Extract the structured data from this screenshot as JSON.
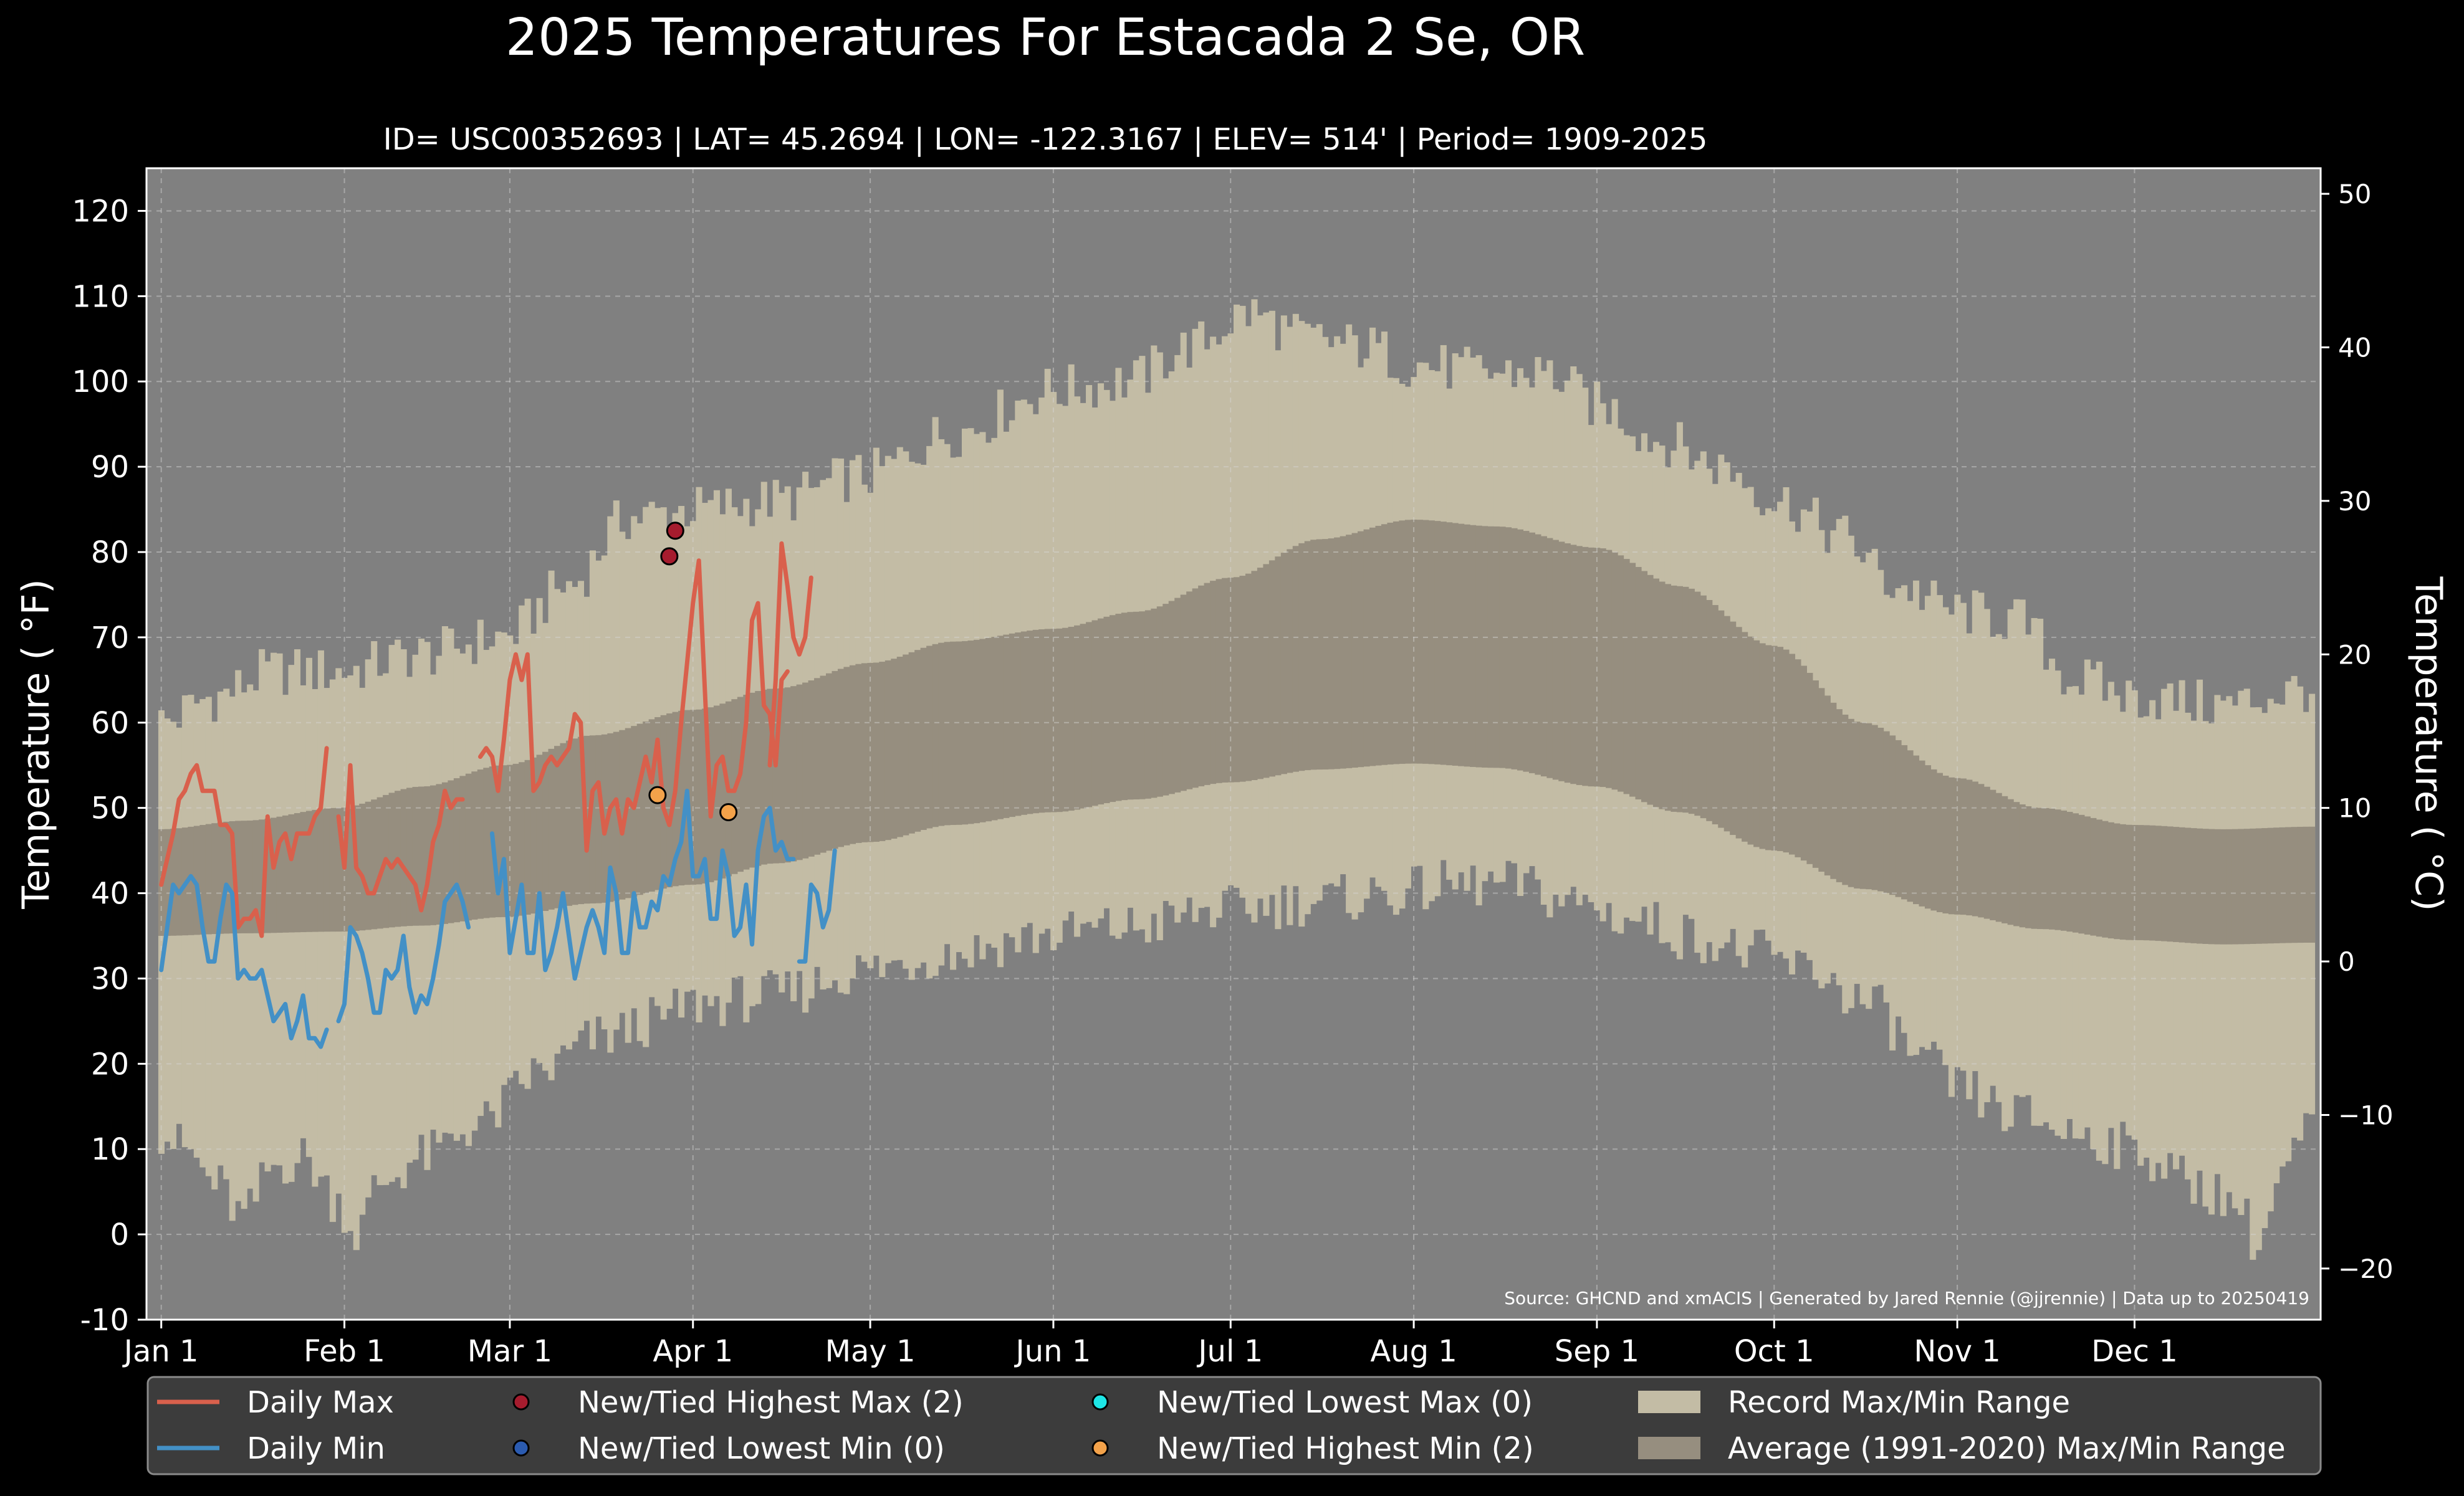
{
  "chart_data": {
    "type": "area",
    "title": "2025 Temperatures For Estacada 2 Se, OR",
    "subtitle": "ID= USC00352693 | LAT= 45.2694 | LON= -122.3167 | ELEV= 514' | Period= 1909-2025",
    "ylabel": "Temperature ( °F)",
    "ylabel_right": "Temperature ( °C)",
    "source": "Source: GHCND and xmACIS | Generated by Jared Rennie (@jjrennie) | Data up to 20250419",
    "ylim": [
      -10,
      125
    ],
    "ylim_right_c": [
      -23.333,
      51.667
    ],
    "xlim_day": [
      -1.5,
      366.5
    ],
    "yticks": [
      -10,
      0,
      10,
      20,
      30,
      40,
      50,
      60,
      70,
      80,
      90,
      100,
      110,
      120
    ],
    "yticks_right": [
      -20,
      -10,
      0,
      10,
      20,
      30,
      40,
      50
    ],
    "xticks": [
      {
        "label": "Jan 1",
        "day": 1
      },
      {
        "label": "Feb 1",
        "day": 32
      },
      {
        "label": "Mar 1",
        "day": 60
      },
      {
        "label": "Apr 1",
        "day": 91
      },
      {
        "label": "May 1",
        "day": 121
      },
      {
        "label": "Jun 1",
        "day": 152
      },
      {
        "label": "Jul 1",
        "day": 182
      },
      {
        "label": "Aug 1",
        "day": 213
      },
      {
        "label": "Sep 1",
        "day": 244
      },
      {
        "label": "Oct 1",
        "day": 274
      },
      {
        "label": "Nov 1",
        "day": 305
      },
      {
        "label": "Dec 1",
        "day": 335
      }
    ],
    "grid": true,
    "legend_position": "bottom",
    "colors": {
      "background": "#000000",
      "plot_bg": "#808080",
      "record_band": "#c3bca5",
      "normal_band": "#968e7f",
      "daily_max": "#d9604c",
      "daily_min": "#4390c6",
      "highest_max": "#a61c2e",
      "lowest_min": "#2b5bb0",
      "lowest_max": "#1ee6e6",
      "highest_min": "#f3a24a",
      "legend_bg": "#3c3c3c",
      "text": "#ffffff"
    },
    "record_max_anchors": [
      [
        1,
        60
      ],
      [
        10,
        63
      ],
      [
        20,
        66
      ],
      [
        31,
        66
      ],
      [
        45,
        68
      ],
      [
        59,
        70
      ],
      [
        70,
        76
      ],
      [
        80,
        84
      ],
      [
        91,
        85
      ],
      [
        105,
        86
      ],
      [
        120,
        89
      ],
      [
        135,
        94
      ],
      [
        152,
        99
      ],
      [
        165,
        100
      ],
      [
        175,
        104
      ],
      [
        185,
        108
      ],
      [
        195,
        105
      ],
      [
        205,
        104
      ],
      [
        213,
        102
      ],
      [
        225,
        101
      ],
      [
        235,
        101
      ],
      [
        245,
        97
      ],
      [
        255,
        93
      ],
      [
        265,
        90
      ],
      [
        275,
        86
      ],
      [
        285,
        82
      ],
      [
        295,
        76
      ],
      [
        305,
        73
      ],
      [
        315,
        72
      ],
      [
        325,
        65
      ],
      [
        335,
        63
      ],
      [
        350,
        62
      ],
      [
        365,
        64
      ]
    ],
    "record_min_anchors": [
      [
        1,
        12
      ],
      [
        5,
        10
      ],
      [
        10,
        6
      ],
      [
        15,
        2
      ],
      [
        20,
        8
      ],
      [
        25,
        9
      ],
      [
        31,
        4
      ],
      [
        34,
        0
      ],
      [
        38,
        6
      ],
      [
        45,
        9
      ],
      [
        55,
        13
      ],
      [
        65,
        19
      ],
      [
        75,
        23
      ],
      [
        85,
        25
      ],
      [
        91,
        27
      ],
      [
        105,
        28
      ],
      [
        120,
        31
      ],
      [
        135,
        33
      ],
      [
        150,
        35
      ],
      [
        165,
        36
      ],
      [
        180,
        38
      ],
      [
        195,
        39
      ],
      [
        210,
        40
      ],
      [
        220,
        41
      ],
      [
        230,
        41
      ],
      [
        240,
        39
      ],
      [
        250,
        37
      ],
      [
        260,
        35
      ],
      [
        270,
        33
      ],
      [
        280,
        31
      ],
      [
        290,
        27
      ],
      [
        300,
        20
      ],
      [
        305,
        17
      ],
      [
        315,
        14
      ],
      [
        325,
        12
      ],
      [
        335,
        10
      ],
      [
        345,
        6
      ],
      [
        352,
        4
      ],
      [
        356,
        -1
      ],
      [
        360,
        7
      ],
      [
        365,
        13
      ]
    ],
    "normal_max_anchors": [
      [
        1,
        47.5
      ],
      [
        15,
        48.5
      ],
      [
        31,
        50
      ],
      [
        45,
        52.5
      ],
      [
        59,
        55
      ],
      [
        74,
        58.5
      ],
      [
        91,
        61.5
      ],
      [
        105,
        64
      ],
      [
        121,
        67
      ],
      [
        135,
        69.5
      ],
      [
        152,
        71
      ],
      [
        166,
        73
      ],
      [
        182,
        77
      ],
      [
        197,
        81.5
      ],
      [
        213,
        83.8
      ],
      [
        227,
        83
      ],
      [
        244,
        80.5
      ],
      [
        258,
        76
      ],
      [
        274,
        69
      ],
      [
        289,
        60
      ],
      [
        305,
        53.5
      ],
      [
        319,
        50
      ],
      [
        335,
        48
      ],
      [
        350,
        47.5
      ],
      [
        365,
        47.8
      ]
    ],
    "normal_min_anchors": [
      [
        1,
        35
      ],
      [
        15,
        35.3
      ],
      [
        31,
        35.5
      ],
      [
        45,
        36.2
      ],
      [
        59,
        37.2
      ],
      [
        74,
        38.8
      ],
      [
        91,
        41
      ],
      [
        105,
        43.5
      ],
      [
        121,
        46
      ],
      [
        135,
        48
      ],
      [
        152,
        49.5
      ],
      [
        166,
        51
      ],
      [
        182,
        53
      ],
      [
        197,
        54.5
      ],
      [
        213,
        55.2
      ],
      [
        227,
        54.7
      ],
      [
        244,
        52.5
      ],
      [
        258,
        49.5
      ],
      [
        274,
        45
      ],
      [
        289,
        40.5
      ],
      [
        305,
        37.5
      ],
      [
        319,
        35.8
      ],
      [
        335,
        34.5
      ],
      [
        350,
        34
      ],
      [
        365,
        34.2
      ]
    ],
    "series": [
      {
        "name": "Daily Max",
        "segments": [
          {
            "start_day": 1,
            "values": [
              41,
              44,
              47,
              51,
              52,
              54,
              55,
              52,
              52,
              52,
              48,
              48,
              47,
              36,
              37,
              37,
              38,
              35,
              49,
              43,
              46,
              47,
              44,
              47,
              47,
              47,
              49,
              50,
              57
            ]
          },
          {
            "start_day": 31,
            "values": [
              49,
              43,
              55,
              43,
              42,
              40,
              40,
              42,
              44,
              43,
              44,
              43,
              42,
              41,
              38,
              41,
              46,
              48,
              52,
              50,
              51,
              51
            ]
          },
          {
            "start_day": 55,
            "values": [
              56,
              57,
              56,
              52,
              58,
              65,
              68,
              65,
              68,
              52,
              53,
              55,
              56,
              55,
              56,
              57,
              61,
              60,
              45,
              52,
              53,
              47,
              50,
              51,
              47,
              51,
              50,
              53,
              56,
              53,
              58,
              50,
              48,
              52,
              60,
              67,
              74,
              79,
              64,
              49,
              55,
              56,
              52,
              52,
              54,
              60,
              72,
              74,
              62,
              61,
              55,
              65,
              66
            ]
          },
          {
            "start_day": 104,
            "values": [
              55,
              65,
              81,
              76,
              70,
              68,
              70,
              77
            ]
          }
        ]
      },
      {
        "name": "Daily Min",
        "segments": [
          {
            "start_day": 1,
            "values": [
              31,
              36,
              41,
              40,
              41,
              42,
              41,
              36,
              32,
              32,
              37,
              41,
              40,
              30,
              31,
              30,
              30,
              31,
              28,
              25,
              26,
              27,
              23,
              25,
              28,
              23,
              23,
              22,
              24
            ]
          },
          {
            "start_day": 31,
            "values": [
              25,
              27,
              36,
              35,
              33,
              30,
              26,
              26,
              31,
              30,
              31,
              35,
              29,
              26,
              28,
              27,
              30,
              34,
              39,
              40,
              41,
              39,
              36
            ]
          },
          {
            "start_day": 57,
            "values": [
              47,
              40,
              44,
              33,
              37,
              41,
              33,
              33,
              40,
              31,
              33,
              36,
              40,
              35,
              30,
              33,
              36,
              38,
              36,
              33,
              43,
              40,
              33,
              33,
              40,
              36,
              36,
              39,
              38,
              42,
              41,
              44,
              46,
              52,
              42,
              42,
              44,
              37,
              37,
              45,
              42,
              35,
              36,
              41,
              34,
              45,
              49,
              50,
              45,
              46,
              44,
              44
            ]
          },
          {
            "start_day": 109,
            "values": [
              32,
              32,
              41,
              40,
              36,
              38,
              45
            ]
          }
        ]
      }
    ],
    "records": [
      {
        "type": "New/Tied Highest Max",
        "day": 87,
        "value": 79.5
      },
      {
        "type": "New/Tied Highest Max",
        "day": 88,
        "value": 82.5
      },
      {
        "type": "New/Tied Highest Min",
        "day": 85,
        "value": 51.5
      },
      {
        "type": "New/Tied Highest Min",
        "day": 97,
        "value": 49.5
      }
    ],
    "legend": [
      {
        "label": "Daily Max",
        "kind": "line",
        "color": "#d9604c"
      },
      {
        "label": "New/Tied Highest Max (2)",
        "kind": "dot",
        "color": "#a61c2e"
      },
      {
        "label": "New/Tied Lowest Max (0)",
        "kind": "dot",
        "color": "#1ee6e6"
      },
      {
        "label": "Record Max/Min Range",
        "kind": "patch",
        "color": "#c3bca5"
      },
      {
        "label": "Daily Min",
        "kind": "line",
        "color": "#4390c6"
      },
      {
        "label": "New/Tied Lowest Min (0)",
        "kind": "dot",
        "color": "#2b5bb0"
      },
      {
        "label": "New/Tied Highest Min (2)",
        "kind": "dot",
        "color": "#f3a24a"
      },
      {
        "label": "Average (1991-2020) Max/Min Range",
        "kind": "patch",
        "color": "#968e7f"
      }
    ]
  }
}
